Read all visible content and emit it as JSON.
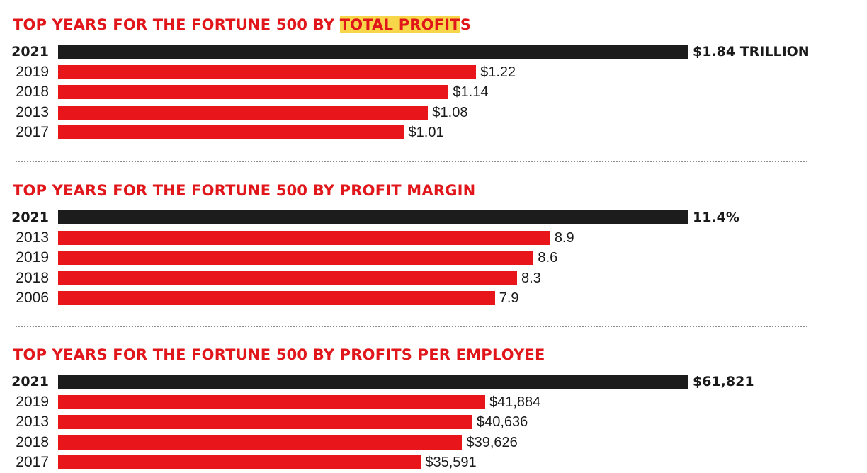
{
  "colors": {
    "title": "#e0161b",
    "bar": "#e8161b",
    "lead_bar": "#1c1c1c",
    "highlight": "#f7d64a"
  },
  "chart_data": [
    {
      "type": "bar",
      "orientation": "horizontal",
      "title_parts": [
        {
          "text": "TOP YEARS FOR THE FORTUNE 500 BY ",
          "highlight": false
        },
        {
          "text": "TOTAL PROFIT",
          "highlight": true
        },
        {
          "text": "S",
          "highlight": false
        }
      ],
      "categories": [
        "2021",
        "2019",
        "2018",
        "2013",
        "2017"
      ],
      "values": [
        1.84,
        1.22,
        1.14,
        1.08,
        1.01
      ],
      "labels": [
        "$1.84 TRILLION",
        "$1.22",
        "$1.14",
        "$1.08",
        "$1.01"
      ],
      "unit": "trillion USD",
      "xlim": [
        0,
        1.84
      ]
    },
    {
      "type": "bar",
      "orientation": "horizontal",
      "title_parts": [
        {
          "text": "TOP YEARS FOR THE FORTUNE 500 BY PROFIT MARGIN",
          "highlight": false
        }
      ],
      "categories": [
        "2021",
        "2013",
        "2019",
        "2018",
        "2006"
      ],
      "values": [
        11.4,
        8.9,
        8.6,
        8.3,
        7.9
      ],
      "labels": [
        "11.4%",
        "8.9",
        "8.6",
        "8.3",
        "7.9"
      ],
      "unit": "percent",
      "xlim": [
        0,
        11.4
      ]
    },
    {
      "type": "bar",
      "orientation": "horizontal",
      "title_parts": [
        {
          "text": "TOP YEARS FOR THE FORTUNE 500 BY PROFITS PER EMPLOYEE",
          "highlight": false
        }
      ],
      "categories": [
        "2021",
        "2019",
        "2013",
        "2018",
        "2017"
      ],
      "values": [
        61821,
        41884,
        40636,
        39626,
        35591
      ],
      "labels": [
        "$61,821",
        "$41,884",
        "$40,636",
        "$39,626",
        "$35,591"
      ],
      "unit": "USD",
      "xlim": [
        0,
        61821
      ]
    }
  ]
}
